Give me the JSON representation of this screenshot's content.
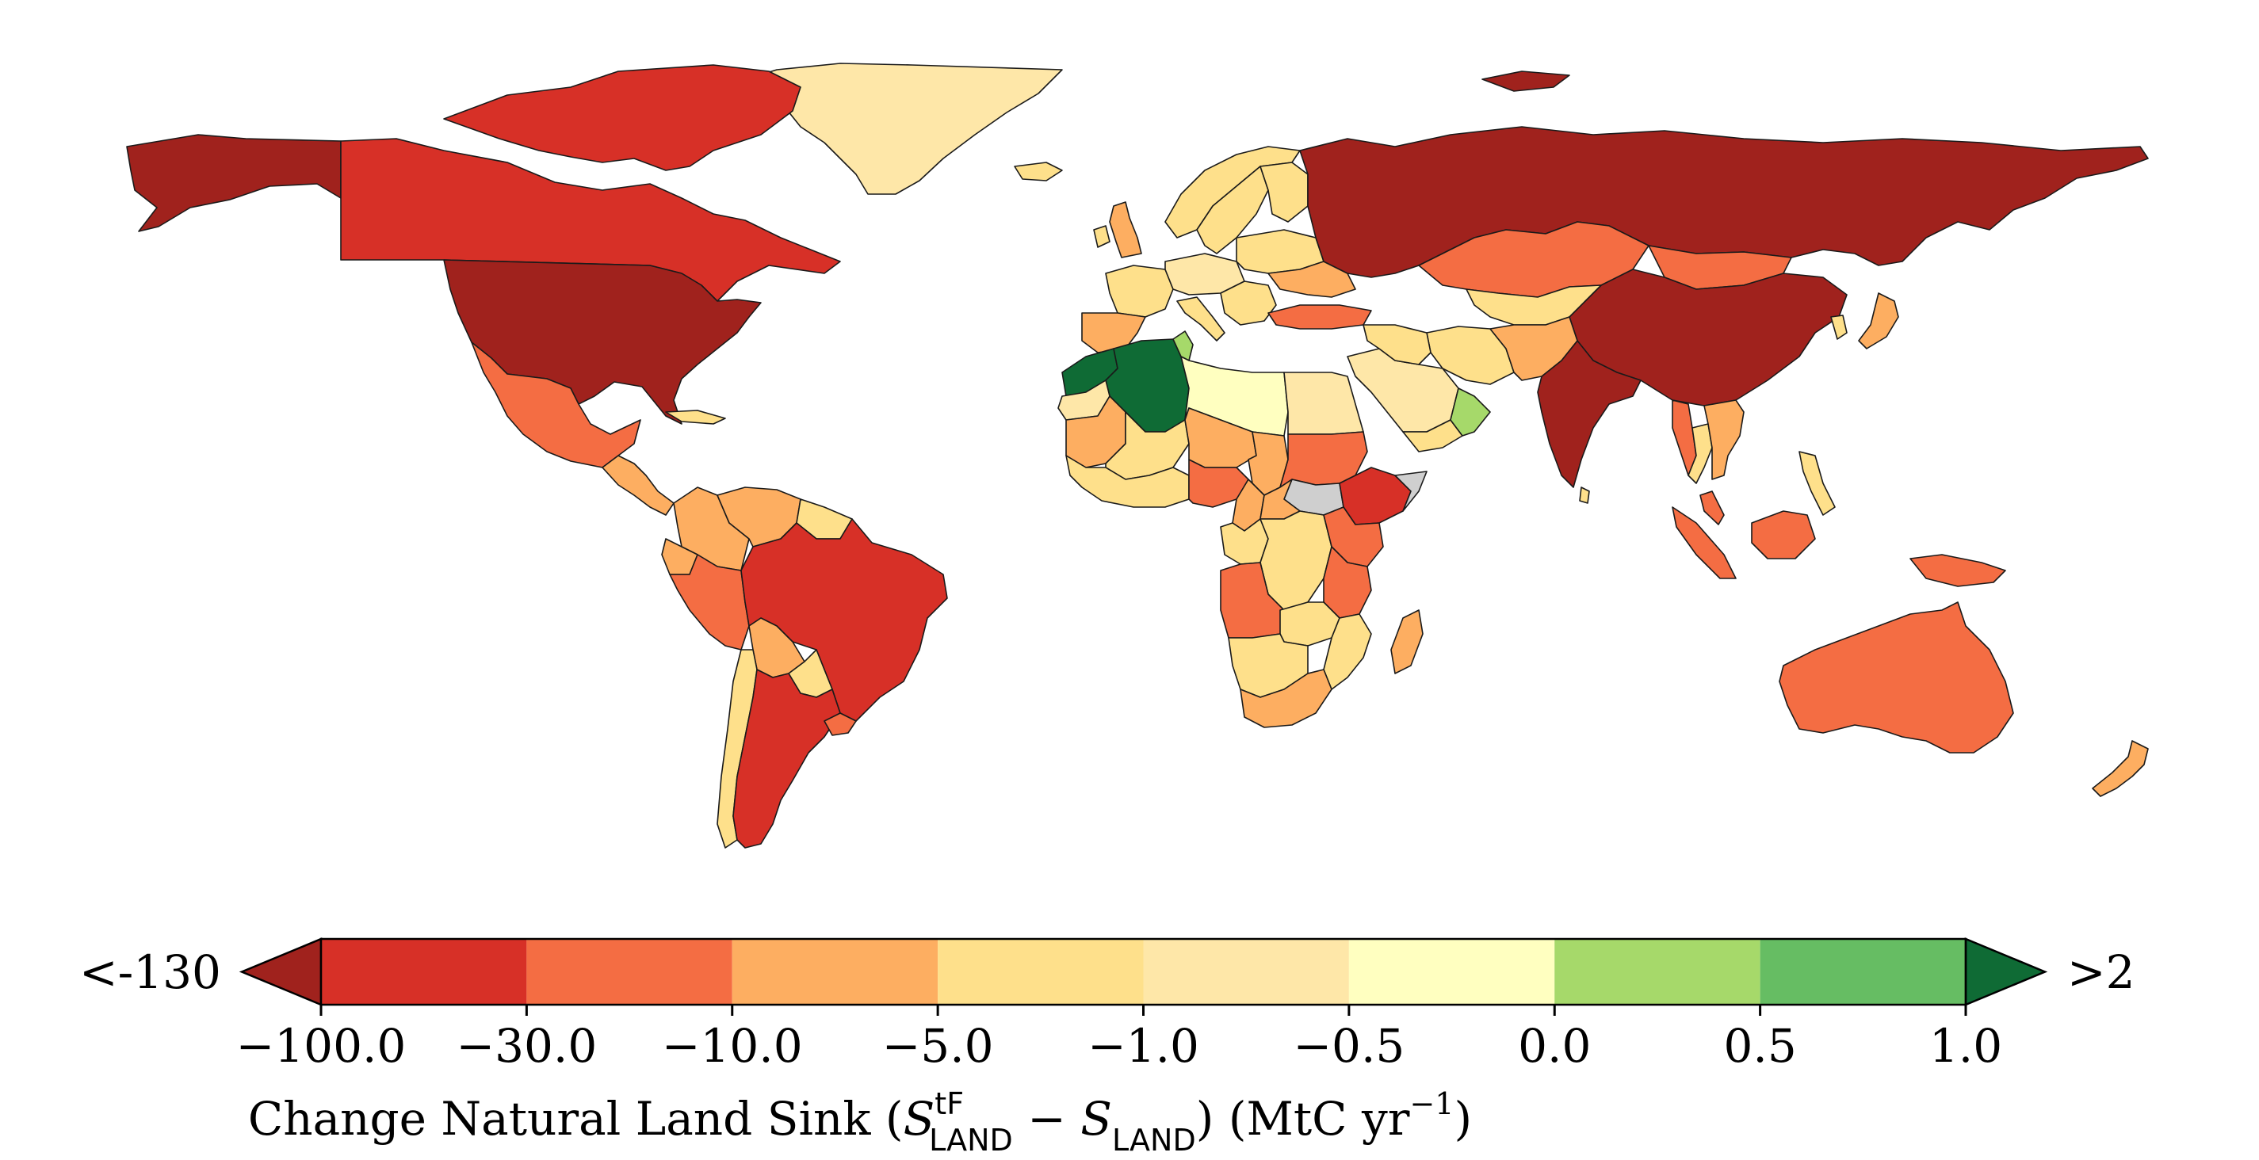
{
  "colorbar": {
    "bins": [
      {
        "from": -130,
        "to": -100,
        "color": "#a0221d"
      },
      {
        "from": -100,
        "to": -30,
        "color": "#d73027"
      },
      {
        "from": -30,
        "to": -10,
        "color": "#f46d43"
      },
      {
        "from": -10,
        "to": -5,
        "color": "#fdae61"
      },
      {
        "from": -5,
        "to": -1,
        "color": "#fee08b"
      },
      {
        "from": -1,
        "to": -0.5,
        "color": "#fee7a8"
      },
      {
        "from": -0.5,
        "to": 0,
        "color": "#ffffc0"
      },
      {
        "from": 0,
        "to": 0.5,
        "color": "#a6d96a"
      },
      {
        "from": 0.5,
        "to": 1,
        "color": "#66bd63"
      },
      {
        "from": 1,
        "to": 2,
        "color": "#0f6b35"
      }
    ],
    "ticks": [
      "−100.0",
      "−30.0",
      "−10.0",
      "−5.0",
      "−1.0",
      "−0.5",
      "0.0",
      "0.5",
      "1.0"
    ],
    "extend_min_label": "<-130",
    "extend_max_label": ">2",
    "label": {
      "prefix": "Change Natural Land Sink (",
      "s1": "S",
      "s1_sup": "tF",
      "s1_sub": "LAND",
      "minus": " − ",
      "s2": "S",
      "s2_sub": "LAND",
      "suffix_open": ") (MtC yr",
      "unit_sup": "−1",
      "suffix_close": ")"
    }
  },
  "no_data_color": "#cfcfcf",
  "ocean_color": "#ffffff",
  "map_regions": [
    {
      "name": "Alaska (USA)",
      "bin": -130
    },
    {
      "name": "Canada",
      "bin": -100
    },
    {
      "name": "United States",
      "bin": -130
    },
    {
      "name": "Greenland",
      "bin": -1
    },
    {
      "name": "Mexico",
      "bin": -30
    },
    {
      "name": "Central America",
      "bin": -10
    },
    {
      "name": "Cuba",
      "bin": -5
    },
    {
      "name": "Colombia",
      "bin": -10
    },
    {
      "name": "Venezuela",
      "bin": -10
    },
    {
      "name": "Guyana & Suriname",
      "bin": -5
    },
    {
      "name": "Ecuador",
      "bin": -10
    },
    {
      "name": "Peru",
      "bin": -30
    },
    {
      "name": "Brazil",
      "bin": -100
    },
    {
      "name": "Bolivia",
      "bin": -10
    },
    {
      "name": "Paraguay",
      "bin": -5
    },
    {
      "name": "Chile",
      "bin": -5
    },
    {
      "name": "Argentina",
      "bin": -100
    },
    {
      "name": "Uruguay",
      "bin": -30
    },
    {
      "name": "Iceland",
      "bin": -5
    },
    {
      "name": "United Kingdom",
      "bin": -10
    },
    {
      "name": "Ireland",
      "bin": -5
    },
    {
      "name": "Norway",
      "bin": -5
    },
    {
      "name": "Sweden",
      "bin": -5
    },
    {
      "name": "Finland",
      "bin": -5
    },
    {
      "name": "France",
      "bin": -5
    },
    {
      "name": "Spain & Portugal",
      "bin": -10
    },
    {
      "name": "Central Europe",
      "bin": -1
    },
    {
      "name": "Eastern Europe",
      "bin": -5
    },
    {
      "name": "Italy",
      "bin": -5
    },
    {
      "name": "Balkans",
      "bin": -5
    },
    {
      "name": "Ukraine",
      "bin": -10
    },
    {
      "name": "Russia",
      "bin": -130
    },
    {
      "name": "Kazakhstan",
      "bin": -30
    },
    {
      "name": "Mongolia",
      "bin": -30
    },
    {
      "name": "China",
      "bin": -130
    },
    {
      "name": "India",
      "bin": -130
    },
    {
      "name": "Turkey",
      "bin": -30
    },
    {
      "name": "Iran",
      "bin": -5
    },
    {
      "name": "Central Asia",
      "bin": -5
    },
    {
      "name": "Pakistan & Afghanistan",
      "bin": -10
    },
    {
      "name": "Saudi Arabia",
      "bin": -1
    },
    {
      "name": "Yemen",
      "bin": -5
    },
    {
      "name": "Oman",
      "bin": 0
    },
    {
      "name": "Iraq & Syria",
      "bin": -5
    },
    {
      "name": "Morocco",
      "bin": 1
    },
    {
      "name": "Algeria",
      "bin": 1
    },
    {
      "name": "Tunisia",
      "bin": 0
    },
    {
      "name": "Libya",
      "bin": -0.5
    },
    {
      "name": "Egypt",
      "bin": -1
    },
    {
      "name": "Western Sahara",
      "bin": -1
    },
    {
      "name": "Mauritania",
      "bin": -10
    },
    {
      "name": "Mali",
      "bin": -5
    },
    {
      "name": "Niger",
      "bin": -10
    },
    {
      "name": "Chad",
      "bin": -10
    },
    {
      "name": "Sudan",
      "bin": -30
    },
    {
      "name": "South Sudan",
      "bin": null
    },
    {
      "name": "Ethiopia",
      "bin": -100
    },
    {
      "name": "Somalia",
      "bin": null
    },
    {
      "name": "West Africa coast",
      "bin": -5
    },
    {
      "name": "Nigeria",
      "bin": -30
    },
    {
      "name": "Cameroon",
      "bin": -10
    },
    {
      "name": "Central African Rep.",
      "bin": -10
    },
    {
      "name": "Gabon & Congo",
      "bin": -5
    },
    {
      "name": "DR Congo",
      "bin": -5
    },
    {
      "name": "Uganda & Kenya",
      "bin": -30
    },
    {
      "name": "Tanzania",
      "bin": -30
    },
    {
      "name": "Angola",
      "bin": -30
    },
    {
      "name": "Zambia",
      "bin": -5
    },
    {
      "name": "Mozambique",
      "bin": -5
    },
    {
      "name": "Namibia & Botswana",
      "bin": -5
    },
    {
      "name": "South Africa",
      "bin": -10
    },
    {
      "name": "Madagascar",
      "bin": -10
    },
    {
      "name": "Myanmar",
      "bin": -30
    },
    {
      "name": "Thailand",
      "bin": -5
    },
    {
      "name": "Indochina",
      "bin": -10
    },
    {
      "name": "Malaysia",
      "bin": -30
    },
    {
      "name": "Sumatra",
      "bin": -30
    },
    {
      "name": "Borneo",
      "bin": -30
    },
    {
      "name": "New Guinea",
      "bin": -30
    },
    {
      "name": "Philippines",
      "bin": -5
    },
    {
      "name": "Japan",
      "bin": -10
    },
    {
      "name": "Korea",
      "bin": -5
    },
    {
      "name": "Australia",
      "bin": -30
    },
    {
      "name": "New Zealand",
      "bin": -10
    },
    {
      "name": "Sri Lanka",
      "bin": -5
    },
    {
      "name": "Arctic islands (Canada)",
      "bin": -100
    },
    {
      "name": "Svalbard & Novaya Zemlya",
      "bin": -130
    }
  ]
}
